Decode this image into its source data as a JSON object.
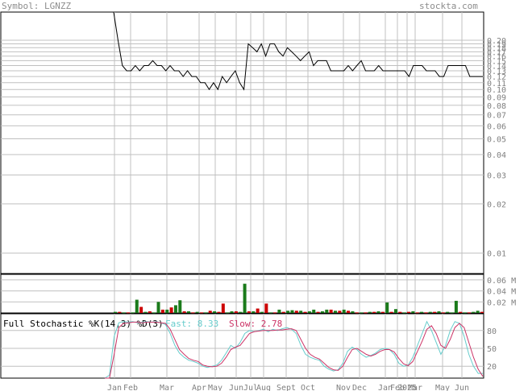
{
  "header": {
    "symbol": "Symbol: LGNZZ",
    "site": "stockta.com"
  },
  "colors": {
    "price_line": "#000000",
    "grid": "#c0c0c0",
    "axis_text": "#808080",
    "vol_up": "#1a7a1a",
    "vol_down": "#cc0000",
    "k_line": "#66cccc",
    "d_line": "#cc3366"
  },
  "chart_data": [
    {
      "type": "line",
      "name": "price",
      "y_scale": "log",
      "ylim": [
        0.0075,
        0.2
      ],
      "y_ticks": [
        "0.20",
        "0.19",
        "0.18",
        "0.17",
        "0.16",
        "0.15",
        "0.14",
        "0.13",
        "0.12",
        "0.11",
        "0.10",
        "0.09",
        "0.08",
        "0.07",
        "0.06",
        "0.05",
        "0.04",
        "0.03",
        "0.02",
        "0.01"
      ],
      "x_labels": [
        "Jan",
        "Feb",
        "Mar",
        "Apr",
        "May",
        "Jun",
        "Jul",
        "Aug",
        "Sept",
        "Oct",
        "Nov",
        "Dec",
        "Jan",
        "Feb",
        "2025",
        "Mar",
        "May",
        "Jun"
      ],
      "values": [
        2.0,
        0.2,
        0.14,
        0.13,
        0.13,
        0.14,
        0.13,
        0.14,
        0.14,
        0.15,
        0.14,
        0.14,
        0.13,
        0.14,
        0.13,
        0.13,
        0.12,
        0.13,
        0.12,
        0.12,
        0.11,
        0.11,
        0.1,
        0.11,
        0.1,
        0.12,
        0.11,
        0.12,
        0.13,
        0.11,
        0.1,
        0.19,
        0.18,
        0.17,
        0.19,
        0.16,
        0.19,
        0.19,
        0.17,
        0.16,
        0.18,
        0.17,
        0.16,
        0.15,
        0.16,
        0.17,
        0.14,
        0.15,
        0.15,
        0.15,
        0.13,
        0.13,
        0.13,
        0.13,
        0.14,
        0.13,
        0.14,
        0.15,
        0.13,
        0.13,
        0.13,
        0.14,
        0.13,
        0.13,
        0.13,
        0.13,
        0.13,
        0.13,
        0.12,
        0.14,
        0.14,
        0.14,
        0.13,
        0.13,
        0.13,
        0.12,
        0.12,
        0.14,
        0.14,
        0.14,
        0.14,
        0.14,
        0.12,
        0.12,
        0.12,
        0.12
      ]
    },
    {
      "type": "bar",
      "name": "volume",
      "y_ticks": [
        "0.06 M",
        "0.04 M",
        "0.02 M"
      ],
      "ylim": [
        0,
        0.07
      ],
      "bars": [
        {
          "v": 0.002,
          "c": "up"
        },
        {
          "v": 0.002,
          "c": "down"
        },
        {
          "v": 0.001,
          "c": "up"
        },
        {
          "v": 0.001,
          "c": "down"
        },
        {
          "v": 0.001,
          "c": "up"
        },
        {
          "v": 0.024,
          "c": "up"
        },
        {
          "v": 0.011,
          "c": "down"
        },
        {
          "v": 0.002,
          "c": "up"
        },
        {
          "v": 0.003,
          "c": "down"
        },
        {
          "v": 0.001,
          "c": "up"
        },
        {
          "v": 0.02,
          "c": "up"
        },
        {
          "v": 0.006,
          "c": "down"
        },
        {
          "v": 0.006,
          "c": "up"
        },
        {
          "v": 0.01,
          "c": "down"
        },
        {
          "v": 0.014,
          "c": "up"
        },
        {
          "v": 0.023,
          "c": "up"
        },
        {
          "v": 0.003,
          "c": "down"
        },
        {
          "v": 0.003,
          "c": "up"
        },
        {
          "v": 0.001,
          "c": "down"
        },
        {
          "v": 0.002,
          "c": "up"
        },
        {
          "v": 0.001,
          "c": "down"
        },
        {
          "v": 0.001,
          "c": "up"
        },
        {
          "v": 0.004,
          "c": "down"
        },
        {
          "v": 0.003,
          "c": "up"
        },
        {
          "v": 0.002,
          "c": "down"
        },
        {
          "v": 0.017,
          "c": "down"
        },
        {
          "v": 0.001,
          "c": "up"
        },
        {
          "v": 0.003,
          "c": "up"
        },
        {
          "v": 0.003,
          "c": "down"
        },
        {
          "v": 0.002,
          "c": "up"
        },
        {
          "v": 0.053,
          "c": "up"
        },
        {
          "v": 0.003,
          "c": "down"
        },
        {
          "v": 0.003,
          "c": "up"
        },
        {
          "v": 0.008,
          "c": "down"
        },
        {
          "v": 0.002,
          "c": "up"
        },
        {
          "v": 0.017,
          "c": "down"
        },
        {
          "v": 0.001,
          "c": "up"
        },
        {
          "v": 0.001,
          "c": "down"
        },
        {
          "v": 0.006,
          "c": "up"
        },
        {
          "v": 0.002,
          "c": "down"
        },
        {
          "v": 0.004,
          "c": "up"
        },
        {
          "v": 0.005,
          "c": "up"
        },
        {
          "v": 0.004,
          "c": "down"
        },
        {
          "v": 0.004,
          "c": "up"
        },
        {
          "v": 0.002,
          "c": "down"
        },
        {
          "v": 0.003,
          "c": "up"
        },
        {
          "v": 0.006,
          "c": "up"
        },
        {
          "v": 0.002,
          "c": "down"
        },
        {
          "v": 0.003,
          "c": "up"
        },
        {
          "v": 0.006,
          "c": "up"
        },
        {
          "v": 0.006,
          "c": "down"
        },
        {
          "v": 0.004,
          "c": "up"
        },
        {
          "v": 0.004,
          "c": "down"
        },
        {
          "v": 0.006,
          "c": "up"
        },
        {
          "v": 0.004,
          "c": "down"
        },
        {
          "v": 0.003,
          "c": "up"
        },
        {
          "v": 0.001,
          "c": "down"
        },
        {
          "v": 0.001,
          "c": "up"
        },
        {
          "v": 0.001,
          "c": "down"
        },
        {
          "v": 0.002,
          "c": "up"
        },
        {
          "v": 0.002,
          "c": "down"
        },
        {
          "v": 0.003,
          "c": "up"
        },
        {
          "v": 0.002,
          "c": "down"
        },
        {
          "v": 0.019,
          "c": "up"
        },
        {
          "v": 0.002,
          "c": "down"
        },
        {
          "v": 0.007,
          "c": "up"
        },
        {
          "v": 0.002,
          "c": "down"
        },
        {
          "v": 0.001,
          "c": "up"
        },
        {
          "v": 0.002,
          "c": "down"
        },
        {
          "v": 0.003,
          "c": "up"
        },
        {
          "v": 0.001,
          "c": "down"
        },
        {
          "v": 0.002,
          "c": "up"
        },
        {
          "v": 0.001,
          "c": "down"
        },
        {
          "v": 0.002,
          "c": "up"
        },
        {
          "v": 0.002,
          "c": "down"
        },
        {
          "v": 0.003,
          "c": "up"
        },
        {
          "v": 0.001,
          "c": "down"
        },
        {
          "v": 0.002,
          "c": "up"
        },
        {
          "v": 0.001,
          "c": "up"
        },
        {
          "v": 0.022,
          "c": "up"
        },
        {
          "v": 0.002,
          "c": "down"
        },
        {
          "v": 0.001,
          "c": "up"
        },
        {
          "v": 0.001,
          "c": "down"
        },
        {
          "v": 0.002,
          "c": "up"
        },
        {
          "v": 0.004,
          "c": "up"
        },
        {
          "v": 0.002,
          "c": "down"
        }
      ]
    },
    {
      "type": "line",
      "name": "Full Stochastic",
      "title": "Full Stochastic %K(14,3) %D(3)",
      "fast": "Fast: 8.33",
      "slow": "Slow: 2.78",
      "y_ticks": [
        "80",
        "50",
        "20"
      ],
      "ylim": [
        0,
        100
      ],
      "k": [
        0,
        5,
        70,
        93,
        95,
        94,
        95,
        93,
        94,
        95,
        94,
        95,
        93,
        90,
        75,
        55,
        42,
        35,
        30,
        28,
        25,
        20,
        18,
        20,
        22,
        30,
        42,
        55,
        50,
        60,
        75,
        80,
        78,
        80,
        82,
        78,
        82,
        80,
        83,
        85,
        82,
        75,
        55,
        40,
        35,
        32,
        30,
        20,
        15,
        12,
        14,
        25,
        45,
        52,
        48,
        40,
        35,
        38,
        42,
        48,
        50,
        48,
        40,
        25,
        20,
        22,
        35,
        55,
        75,
        95,
        80,
        60,
        40,
        55,
        80,
        95,
        92,
        70,
        40,
        20,
        8,
        8
      ],
      "d": [
        0,
        0,
        40,
        85,
        92,
        93,
        94,
        94,
        93,
        94,
        94,
        94,
        93,
        92,
        82,
        65,
        48,
        40,
        33,
        30,
        28,
        22,
        20,
        19,
        20,
        25,
        35,
        48,
        52,
        55,
        65,
        75,
        78,
        79,
        80,
        80,
        80,
        81,
        81,
        82,
        83,
        80,
        65,
        50,
        40,
        35,
        32,
        25,
        18,
        14,
        13,
        20,
        35,
        48,
        50,
        45,
        40,
        37,
        40,
        45,
        48,
        48,
        44,
        33,
        24,
        21,
        28,
        45,
        62,
        82,
        88,
        75,
        55,
        50,
        65,
        85,
        92,
        85,
        60,
        35,
        15,
        3
      ]
    }
  ]
}
